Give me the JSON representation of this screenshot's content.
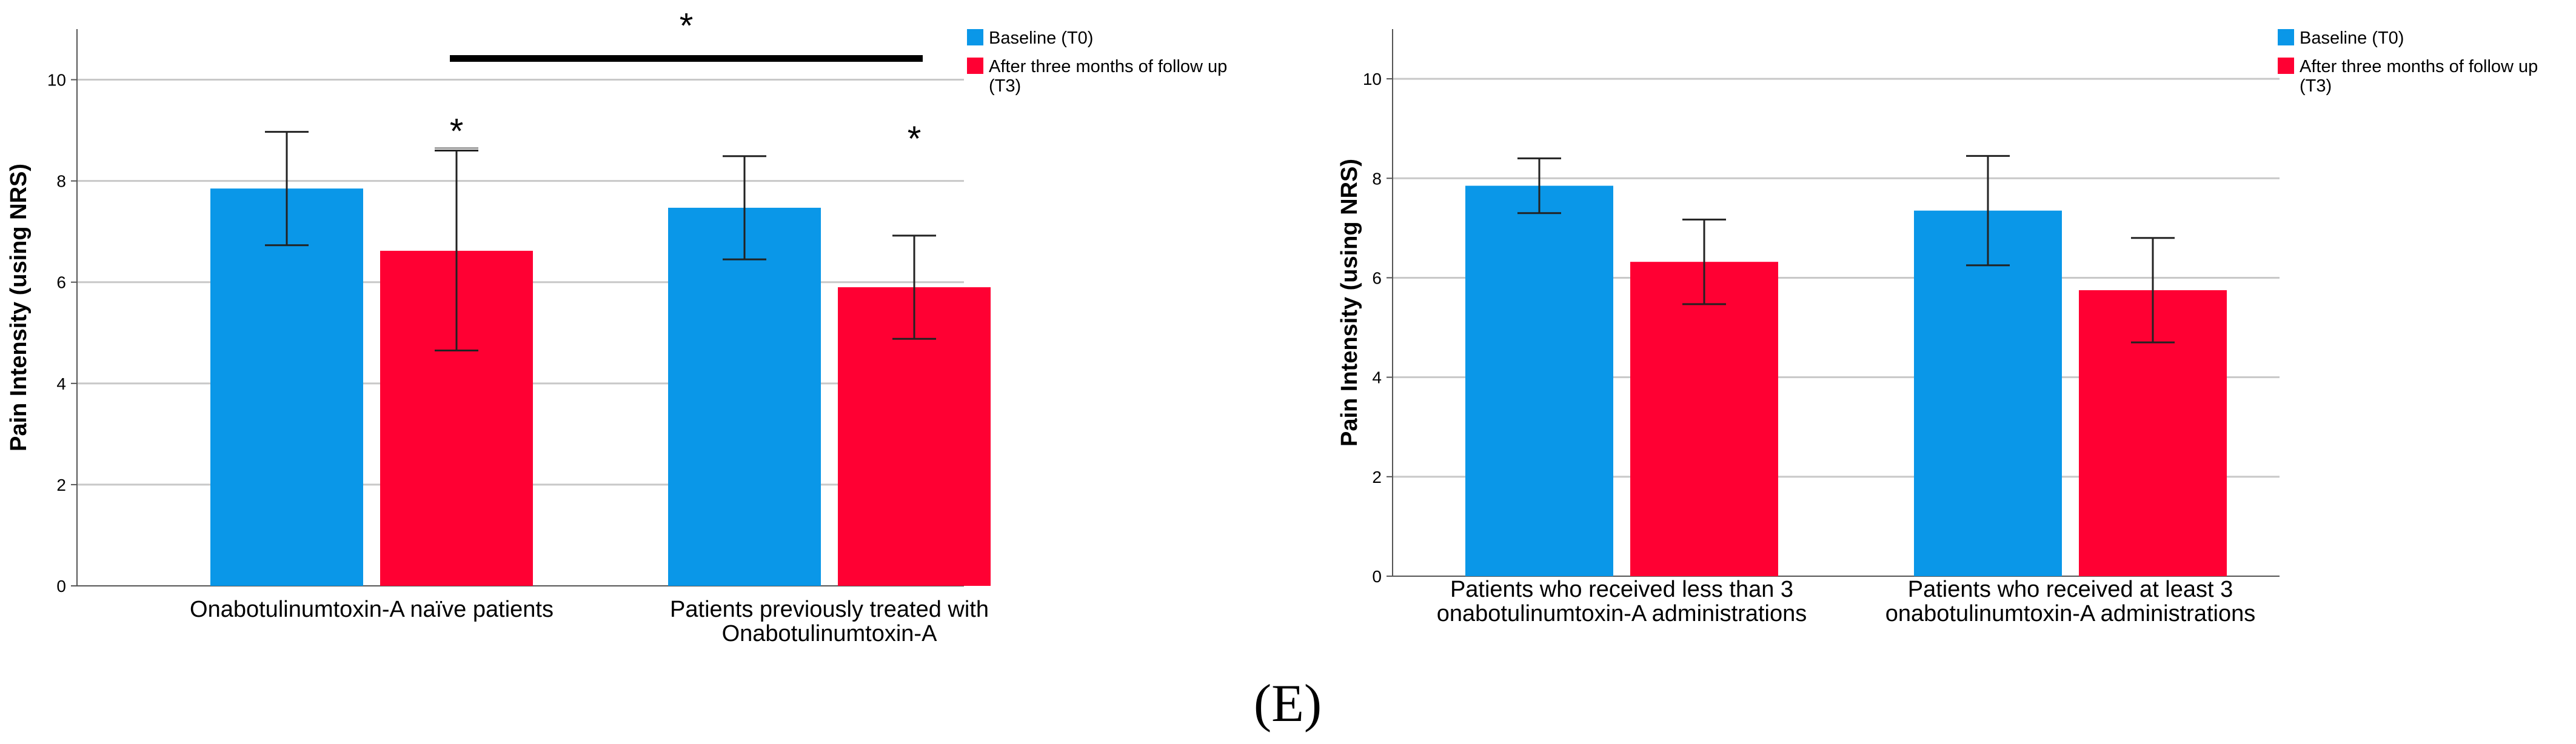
{
  "figure_label": "(E)",
  "colors": {
    "baseline": "#0a97e8",
    "after": "#ff0033",
    "grid": "#c8c8c8",
    "axis": "#555555",
    "ink": "#000000"
  },
  "chart_data": [
    {
      "type": "bar",
      "title": "",
      "xlabel": "",
      "ylabel": "Pain Intensity (using NRS)",
      "ylim": [
        0,
        11
      ],
      "yticks": [
        0,
        2,
        4,
        6,
        8,
        10
      ],
      "grid": true,
      "legend_position": "top-right",
      "categories": [
        [
          "Onabotulinumtoxin-A naïve patients"
        ],
        [
          "Patients previously treated with",
          "Onabotulinumtoxin-A"
        ]
      ],
      "series": [
        {
          "name": "Baseline (T0)",
          "name_lines": [
            "Baseline (T0)"
          ],
          "color": "#0a97e8",
          "values": [
            7.85,
            7.47
          ],
          "error_low": [
            6.73,
            6.45
          ],
          "error_high": [
            8.97,
            8.49
          ]
        },
        {
          "name": "After three months of follow up (T3)",
          "name_lines": [
            "After three months of follow up",
            "(T3)"
          ],
          "color": "#ff0033",
          "values": [
            6.62,
            5.9
          ],
          "error_low": [
            4.65,
            4.88
          ],
          "error_high": [
            8.6,
            6.92
          ]
        }
      ],
      "annotations": [
        {
          "text": "*",
          "type": "bracket",
          "from_category": 0,
          "to_category": 1,
          "y": 10.42
        },
        {
          "text": "*",
          "type": "bar_mark",
          "category": 0,
          "series": 1,
          "y": 8.65
        },
        {
          "text": "*",
          "type": "bar_mark",
          "category": 1,
          "series": 1,
          "y": 8.5
        }
      ]
    },
    {
      "type": "bar",
      "title": "",
      "xlabel": "",
      "ylabel": "Pain Intensity (using NRS)",
      "ylim": [
        0,
        11
      ],
      "yticks": [
        0,
        2,
        4,
        6,
        8,
        10
      ],
      "grid": true,
      "legend_position": "top-right",
      "categories": [
        [
          "Patients who received less than 3",
          "onabotulinumtoxin-A administrations"
        ],
        [
          "Patients who received at least 3",
          "onabotulinumtoxin-A administrations"
        ]
      ],
      "series": [
        {
          "name": "Baseline (T0)",
          "name_lines": [
            "Baseline (T0)"
          ],
          "color": "#0a97e8",
          "values": [
            7.85,
            7.35
          ],
          "error_low": [
            7.3,
            6.25
          ],
          "error_high": [
            8.4,
            8.45
          ]
        },
        {
          "name": "After three months of follow up (T3)",
          "name_lines": [
            "After three months of follow up",
            "(T3)"
          ],
          "color": "#ff0033",
          "values": [
            6.32,
            5.75
          ],
          "error_low": [
            5.47,
            4.7
          ],
          "error_high": [
            7.17,
            6.8
          ]
        }
      ],
      "annotations": []
    }
  ]
}
